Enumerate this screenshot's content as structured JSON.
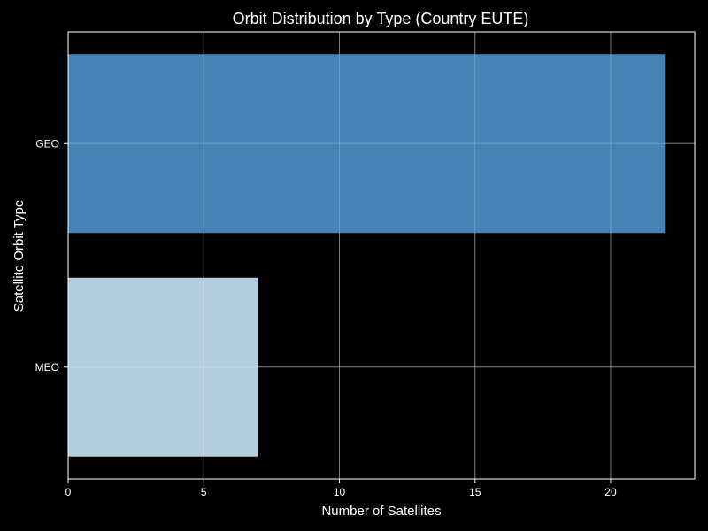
{
  "chart_data": {
    "type": "bar",
    "orientation": "horizontal",
    "title": "Orbit Distribution by Type (Country EUTE)",
    "xlabel": "Number of Satellites",
    "ylabel": "Satellite Orbit Type",
    "categories": [
      "GEO",
      "MEO"
    ],
    "values": [
      22,
      7
    ],
    "bar_colors": [
      "#4682b4",
      "#b3cde0"
    ],
    "xlim": [
      0,
      23.1
    ],
    "xticks": [
      0,
      5,
      10,
      15,
      20
    ],
    "xtick_labels": [
      "0",
      "5",
      "10",
      "15",
      "20"
    ],
    "grid": true,
    "background": "#000000",
    "foreground": "#ffffff"
  }
}
